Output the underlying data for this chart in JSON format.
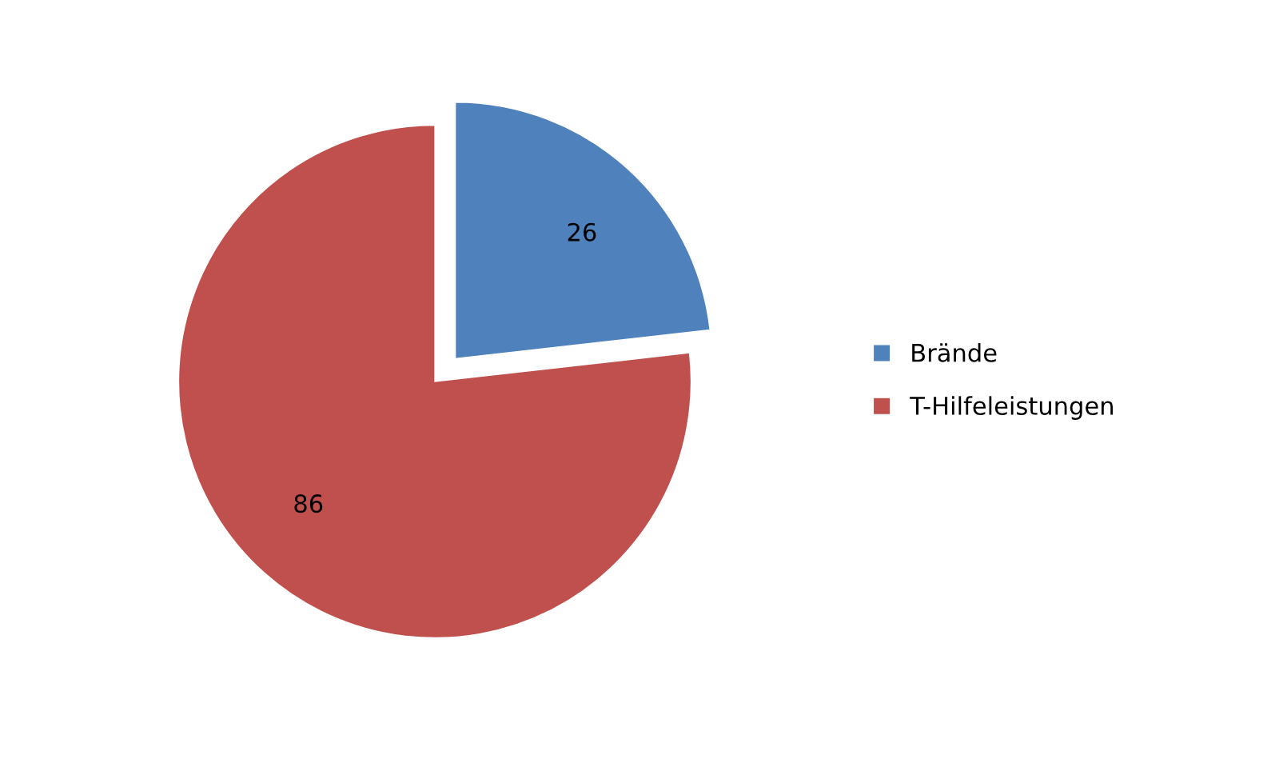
{
  "chart_data": {
    "type": "pie",
    "categories": [
      "Brände",
      "T-Hilfeleistungen"
    ],
    "values": [
      26,
      86
    ],
    "colors": [
      "#4f81bd",
      "#c0504d"
    ],
    "data_labels": true,
    "legend": "right"
  }
}
